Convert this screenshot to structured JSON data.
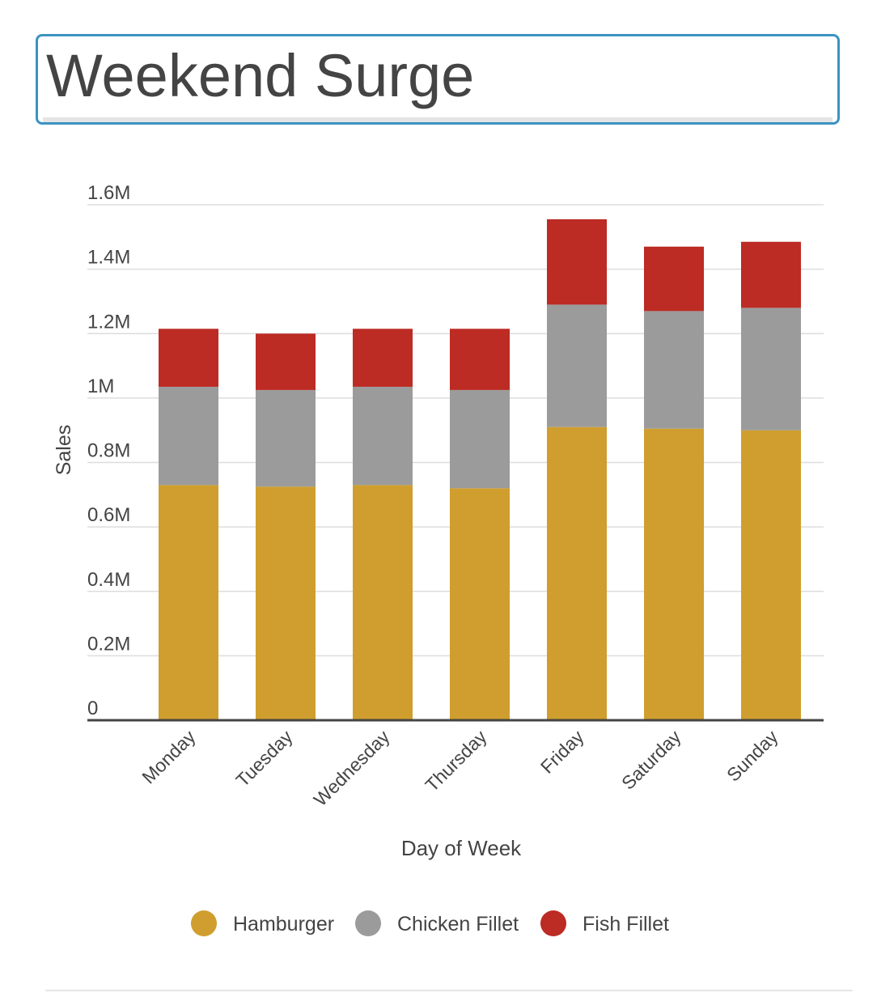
{
  "title": "Weekend Surge",
  "colors": {
    "hamburger": "#cf9e2e",
    "chicken_fillet": "#9b9b9b",
    "fish_fillet": "#bc2b24",
    "title_border": "#3c93c2",
    "gridline": "#dddddd",
    "axis_line": "#444444",
    "text": "#444444"
  },
  "chart_data": {
    "type": "bar",
    "stacked": true,
    "categories": [
      "Monday",
      "Tuesday",
      "Wednesday",
      "Thursday",
      "Friday",
      "Saturday",
      "Sunday"
    ],
    "series": [
      {
        "name": "Hamburger",
        "color": "#cf9e2e",
        "values": [
          730000,
          725000,
          730000,
          720000,
          910000,
          905000,
          900000
        ]
      },
      {
        "name": "Chicken Fillet",
        "color": "#9b9b9b",
        "values": [
          305000,
          300000,
          305000,
          305000,
          380000,
          365000,
          380000
        ]
      },
      {
        "name": "Fish Fillet",
        "color": "#bc2b24",
        "values": [
          180000,
          175000,
          180000,
          190000,
          265000,
          200000,
          205000
        ]
      }
    ],
    "xlabel": "Day of Week",
    "ylabel": "Sales",
    "ylim": [
      0,
      1600000
    ],
    "yticks": [
      0,
      200000,
      400000,
      600000,
      800000,
      1000000,
      1200000,
      1400000,
      1600000
    ],
    "ytick_labels": [
      "0",
      "0.2M",
      "0.4M",
      "0.6M",
      "0.8M",
      "1M",
      "1.2M",
      "1.4M",
      "1.6M"
    ],
    "grid": true,
    "legend_position": "bottom"
  }
}
